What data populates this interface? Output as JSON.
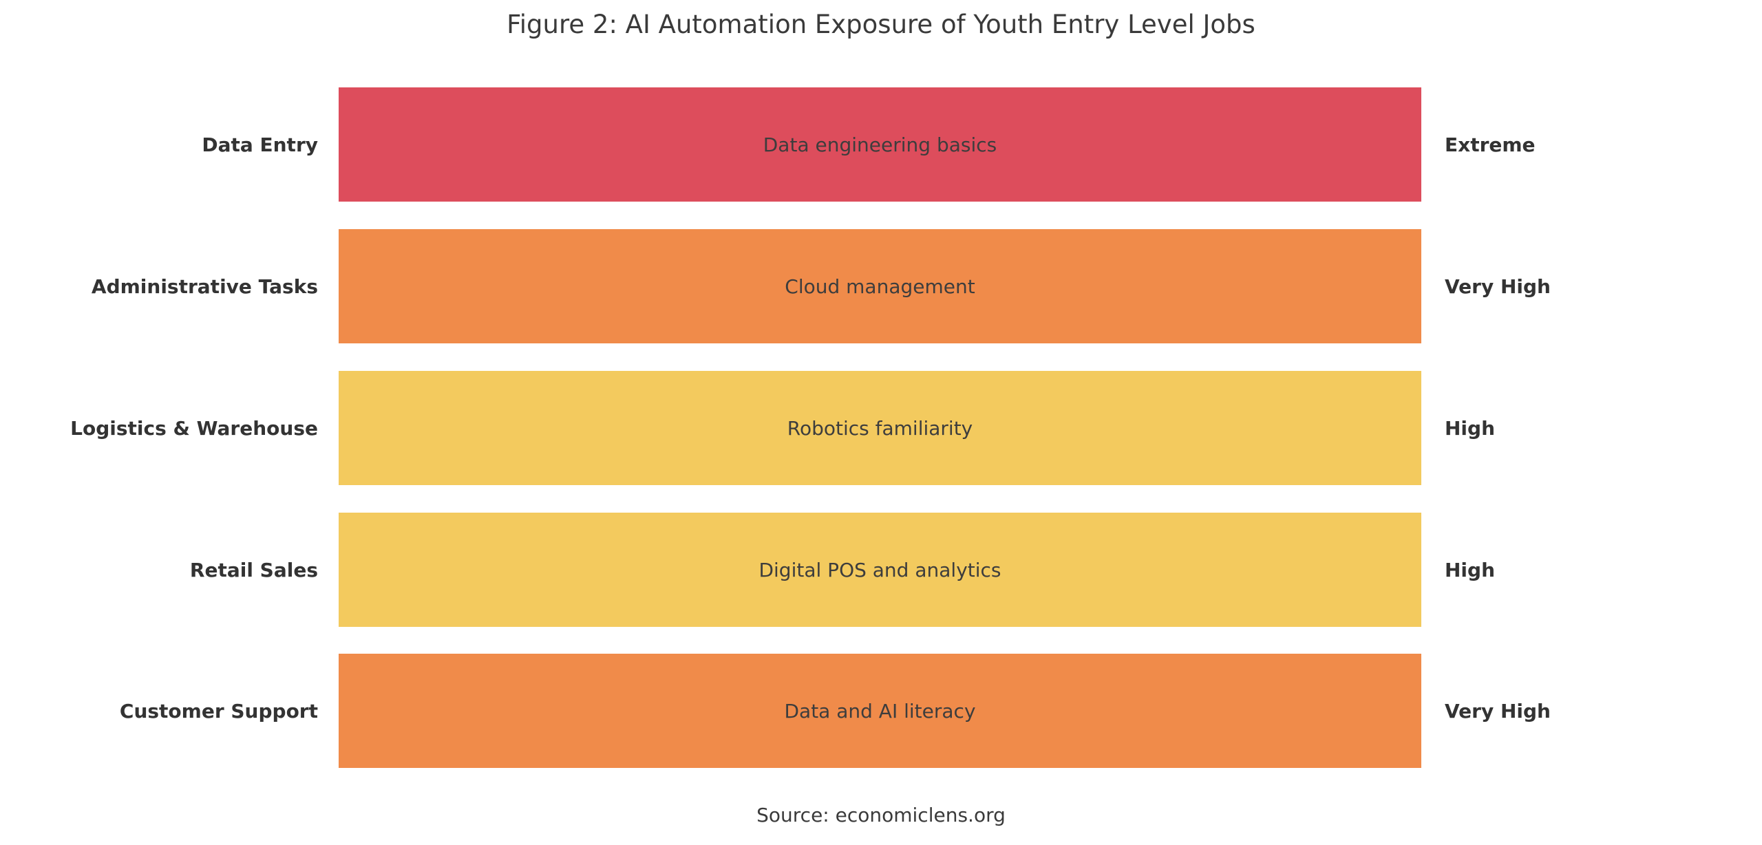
{
  "figure": {
    "title": "Figure 2: AI Automation Exposure of Youth Entry Level Jobs",
    "source": "Source: economiclens.org"
  },
  "chart_data": {
    "type": "bar",
    "orientation": "horizontal",
    "title": "Figure 2: AI Automation Exposure of Youth Entry Level Jobs",
    "categories": [
      "Data Entry",
      "Administrative Tasks",
      "Logistics & Warehouse",
      "Retail Sales",
      "Customer Support"
    ],
    "bars": [
      {
        "category": "Data Entry",
        "annotation": "Data engineering basics",
        "level": "Extreme",
        "color": "#dd4d5c"
      },
      {
        "category": "Administrative Tasks",
        "annotation": "Cloud management",
        "level": "Very High",
        "color": "#f08b4a"
      },
      {
        "category": "Logistics & Warehouse",
        "annotation": "Robotics familiarity",
        "level": "High",
        "color": "#f3ca5e"
      },
      {
        "category": "Retail Sales",
        "annotation": "Digital POS and analytics",
        "level": "High",
        "color": "#f3ca5e"
      },
      {
        "category": "Customer Support",
        "annotation": "Data and AI literacy",
        "level": "Very High",
        "color": "#f08b4a"
      }
    ],
    "level_colors": {
      "Extreme": "#dd4d5c",
      "Very High": "#f08b4a",
      "High": "#f3ca5e"
    },
    "legend": "none",
    "grid": "off",
    "layout_note": "All bars span equal full width; exposure level is encoded by bar color and the bold label to the right of each bar",
    "source": "Source: economiclens.org"
  }
}
